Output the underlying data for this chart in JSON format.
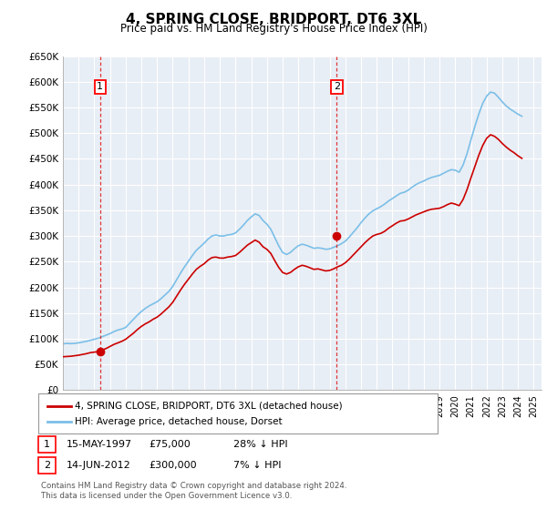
{
  "title": "4, SPRING CLOSE, BRIDPORT, DT6 3XL",
  "subtitle": "Price paid vs. HM Land Registry's House Price Index (HPI)",
  "ylabel_ticks": [
    "£0",
    "£50K",
    "£100K",
    "£150K",
    "£200K",
    "£250K",
    "£300K",
    "£350K",
    "£400K",
    "£450K",
    "£500K",
    "£550K",
    "£600K",
    "£650K"
  ],
  "ylim": [
    0,
    650000
  ],
  "xlim_start": 1995.0,
  "xlim_end": 2025.5,
  "sale1_x": 1997.37,
  "sale1_y": 75000,
  "sale1_label": "1",
  "sale1_date": "15-MAY-1997",
  "sale1_price": "£75,000",
  "sale1_hpi": "28% ↓ HPI",
  "sale2_x": 2012.45,
  "sale2_y": 300000,
  "sale2_label": "2",
  "sale2_date": "14-JUN-2012",
  "sale2_price": "£300,000",
  "sale2_hpi": "7% ↓ HPI",
  "hpi_color": "#7bbfe8",
  "price_color": "#cc0000",
  "background_color": "#e8eef5",
  "grid_color": "#ffffff",
  "legend_line1": "4, SPRING CLOSE, BRIDPORT, DT6 3XL (detached house)",
  "legend_line2": "HPI: Average price, detached house, Dorset",
  "footnote": "Contains HM Land Registry data © Crown copyright and database right 2024.\nThis data is licensed under the Open Government Licence v3.0.",
  "hpi_data_x": [
    1995.0,
    1995.25,
    1995.5,
    1995.75,
    1996.0,
    1996.25,
    1996.5,
    1996.75,
    1997.0,
    1997.25,
    1997.5,
    1997.75,
    1998.0,
    1998.25,
    1998.5,
    1998.75,
    1999.0,
    1999.25,
    1999.5,
    1999.75,
    2000.0,
    2000.25,
    2000.5,
    2000.75,
    2001.0,
    2001.25,
    2001.5,
    2001.75,
    2002.0,
    2002.25,
    2002.5,
    2002.75,
    2003.0,
    2003.25,
    2003.5,
    2003.75,
    2004.0,
    2004.25,
    2004.5,
    2004.75,
    2005.0,
    2005.25,
    2005.5,
    2005.75,
    2006.0,
    2006.25,
    2006.5,
    2006.75,
    2007.0,
    2007.25,
    2007.5,
    2007.75,
    2008.0,
    2008.25,
    2008.5,
    2008.75,
    2009.0,
    2009.25,
    2009.5,
    2009.75,
    2010.0,
    2010.25,
    2010.5,
    2010.75,
    2011.0,
    2011.25,
    2011.5,
    2011.75,
    2012.0,
    2012.25,
    2012.5,
    2012.75,
    2013.0,
    2013.25,
    2013.5,
    2013.75,
    2014.0,
    2014.25,
    2014.5,
    2014.75,
    2015.0,
    2015.25,
    2015.5,
    2015.75,
    2016.0,
    2016.25,
    2016.5,
    2016.75,
    2017.0,
    2017.25,
    2017.5,
    2017.75,
    2018.0,
    2018.25,
    2018.5,
    2018.75,
    2019.0,
    2019.25,
    2019.5,
    2019.75,
    2020.0,
    2020.25,
    2020.5,
    2020.75,
    2021.0,
    2021.25,
    2021.5,
    2021.75,
    2022.0,
    2022.25,
    2022.5,
    2022.75,
    2023.0,
    2023.25,
    2023.5,
    2023.75,
    2024.0,
    2024.25
  ],
  "hpi_data_y": [
    90000,
    91000,
    90500,
    91000,
    92000,
    93500,
    95000,
    97000,
    99000,
    101000,
    104000,
    107000,
    110000,
    114000,
    117000,
    119000,
    122000,
    130000,
    138000,
    146000,
    153000,
    159000,
    164000,
    168000,
    172000,
    178000,
    185000,
    192000,
    202000,
    215000,
    228000,
    240000,
    251000,
    262000,
    272000,
    279000,
    286000,
    294000,
    300000,
    302000,
    300000,
    300000,
    302000,
    303000,
    306000,
    313000,
    321000,
    330000,
    337000,
    343000,
    340000,
    330000,
    323000,
    313000,
    297000,
    281000,
    268000,
    264000,
    268000,
    275000,
    281000,
    284000,
    282000,
    279000,
    276000,
    277000,
    276000,
    274000,
    275000,
    278000,
    281000,
    285000,
    290000,
    298000,
    307000,
    316000,
    326000,
    335000,
    343000,
    349000,
    353000,
    357000,
    362000,
    368000,
    373000,
    378000,
    383000,
    385000,
    389000,
    395000,
    400000,
    404000,
    407000,
    411000,
    414000,
    416000,
    418000,
    422000,
    426000,
    429000,
    428000,
    424000,
    438000,
    460000,
    487000,
    513000,
    537000,
    558000,
    572000,
    580000,
    578000,
    570000,
    561000,
    553000,
    547000,
    542000,
    537000,
    533000
  ],
  "price_data_x": [
    1995.0,
    1995.25,
    1995.5,
    1995.75,
    1996.0,
    1996.25,
    1996.5,
    1996.75,
    1997.0,
    1997.25,
    1997.5,
    1997.75,
    1998.0,
    1998.25,
    1998.5,
    1998.75,
    1999.0,
    1999.25,
    1999.5,
    1999.75,
    2000.0,
    2000.25,
    2000.5,
    2000.75,
    2001.0,
    2001.25,
    2001.5,
    2001.75,
    2002.0,
    2002.25,
    2002.5,
    2002.75,
    2003.0,
    2003.25,
    2003.5,
    2003.75,
    2004.0,
    2004.25,
    2004.5,
    2004.75,
    2005.0,
    2005.25,
    2005.5,
    2005.75,
    2006.0,
    2006.25,
    2006.5,
    2006.75,
    2007.0,
    2007.25,
    2007.5,
    2007.75,
    2008.0,
    2008.25,
    2008.5,
    2008.75,
    2009.0,
    2009.25,
    2009.5,
    2009.75,
    2010.0,
    2010.25,
    2010.5,
    2010.75,
    2011.0,
    2011.25,
    2011.5,
    2011.75,
    2012.0,
    2012.25,
    2012.5,
    2012.75,
    2013.0,
    2013.25,
    2013.5,
    2013.75,
    2014.0,
    2014.25,
    2014.5,
    2014.75,
    2015.0,
    2015.25,
    2015.5,
    2015.75,
    2016.0,
    2016.25,
    2016.5,
    2016.75,
    2017.0,
    2017.25,
    2017.5,
    2017.75,
    2018.0,
    2018.25,
    2018.5,
    2018.75,
    2019.0,
    2019.25,
    2019.5,
    2019.75,
    2020.0,
    2020.25,
    2020.5,
    2020.75,
    2021.0,
    2021.25,
    2021.5,
    2021.75,
    2022.0,
    2022.25,
    2022.5,
    2022.75,
    2023.0,
    2023.25,
    2023.5,
    2023.75,
    2024.0,
    2024.25
  ],
  "price_data_y": [
    65000,
    65500,
    66000,
    67000,
    68000,
    69500,
    71000,
    73000,
    74000,
    75000,
    78000,
    81000,
    85000,
    89000,
    92000,
    95000,
    99000,
    105000,
    111000,
    118000,
    124000,
    129000,
    133000,
    138000,
    142000,
    148000,
    155000,
    162000,
    171000,
    183000,
    195000,
    206000,
    216000,
    226000,
    235000,
    241000,
    246000,
    253000,
    258000,
    259000,
    257000,
    257000,
    259000,
    260000,
    262000,
    268000,
    275000,
    282000,
    287000,
    292000,
    288000,
    279000,
    274000,
    266000,
    252000,
    239000,
    229000,
    226000,
    229000,
    235000,
    240000,
    243000,
    241000,
    238000,
    235000,
    236000,
    234000,
    232000,
    233000,
    236000,
    240000,
    243000,
    248000,
    255000,
    263000,
    271000,
    279000,
    287000,
    294000,
    300000,
    303000,
    305000,
    309000,
    315000,
    320000,
    325000,
    329000,
    330000,
    333000,
    337000,
    341000,
    344000,
    347000,
    350000,
    352000,
    353000,
    354000,
    357000,
    361000,
    364000,
    362000,
    359000,
    371000,
    390000,
    413000,
    435000,
    457000,
    476000,
    490000,
    497000,
    494000,
    488000,
    480000,
    473000,
    467000,
    462000,
    456000,
    451000
  ]
}
